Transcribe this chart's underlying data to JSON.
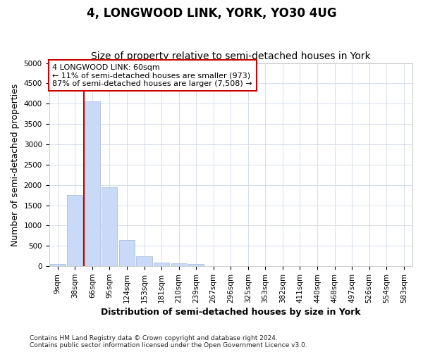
{
  "title": "4, LONGWOOD LINK, YORK, YO30 4UG",
  "subtitle": "Size of property relative to semi-detached houses in York",
  "xlabel": "Distribution of semi-detached houses by size in York",
  "ylabel": "Number of semi-detached properties",
  "bar_labels": [
    "9sqm",
    "38sqm",
    "66sqm",
    "95sqm",
    "124sqm",
    "153sqm",
    "181sqm",
    "210sqm",
    "239sqm",
    "267sqm",
    "296sqm",
    "325sqm",
    "353sqm",
    "382sqm",
    "411sqm",
    "440sqm",
    "468sqm",
    "497sqm",
    "526sqm",
    "554sqm",
    "583sqm"
  ],
  "bar_values": [
    50,
    1750,
    4050,
    1950,
    650,
    240,
    90,
    75,
    60,
    0,
    0,
    0,
    0,
    0,
    0,
    0,
    0,
    0,
    0,
    0,
    0
  ],
  "bar_color": "#c9daf8",
  "bar_edge_color": "#a4b8d4",
  "vline_x": 1.6,
  "vline_color": "#cc0000",
  "ylim": [
    0,
    5000
  ],
  "yticks": [
    0,
    500,
    1000,
    1500,
    2000,
    2500,
    3000,
    3500,
    4000,
    4500,
    5000
  ],
  "annotation_text": "4 LONGWOOD LINK: 60sqm\n← 11% of semi-detached houses are smaller (973)\n87% of semi-detached houses are larger (7,508) →",
  "annotation_box_color": "#ffffff",
  "annotation_box_edge": "#cc0000",
  "footer_text": "Contains HM Land Registry data © Crown copyright and database right 2024.\nContains public sector information licensed under the Open Government Licence v3.0.",
  "title_fontsize": 12,
  "subtitle_fontsize": 10,
  "axis_label_fontsize": 9,
  "tick_fontsize": 7.5,
  "annotation_fontsize": 8,
  "footer_fontsize": 6.5,
  "grid_color": "#d0d8e8",
  "background_color": "#ffffff"
}
